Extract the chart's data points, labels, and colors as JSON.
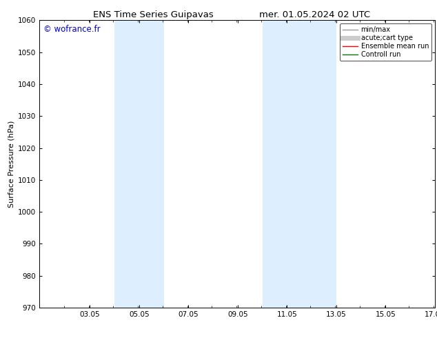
{
  "title_left": "ENS Time Series Guipavas",
  "title_right": "mer. 01.05.2024 02 UTC",
  "ylabel": "Surface Pressure (hPa)",
  "ylim": [
    970,
    1060
  ],
  "yticks": [
    970,
    980,
    990,
    1000,
    1010,
    1020,
    1030,
    1040,
    1050,
    1060
  ],
  "xlim_start": 1.0,
  "xlim_end": 17.05,
  "xtick_labels": [
    "03.05",
    "05.05",
    "07.05",
    "09.05",
    "11.05",
    "13.05",
    "15.05",
    "17.05"
  ],
  "xtick_positions": [
    3.05,
    5.05,
    7.05,
    9.05,
    11.05,
    13.05,
    15.05,
    17.05
  ],
  "shaded_bands": [
    {
      "x_start": 4.05,
      "x_end": 6.05
    },
    {
      "x_start": 10.05,
      "x_end": 13.05
    }
  ],
  "shaded_color": "#ddeeff",
  "background_color": "#ffffff",
  "watermark_text": "© wofrance.fr",
  "watermark_color": "#0000cc",
  "legend_entries": [
    {
      "label": "min/max",
      "color": "#999999",
      "lw": 1.0
    },
    {
      "label": "acute;cart type",
      "color": "#cccccc",
      "lw": 5.0
    },
    {
      "label": "Ensemble mean run",
      "color": "#ff0000",
      "lw": 1.0
    },
    {
      "label": "Controll run",
      "color": "#007700",
      "lw": 1.0
    }
  ],
  "title_fontsize": 9.5,
  "tick_fontsize": 7.5,
  "ylabel_fontsize": 8.0,
  "watermark_fontsize": 8.5,
  "legend_fontsize": 7.0
}
